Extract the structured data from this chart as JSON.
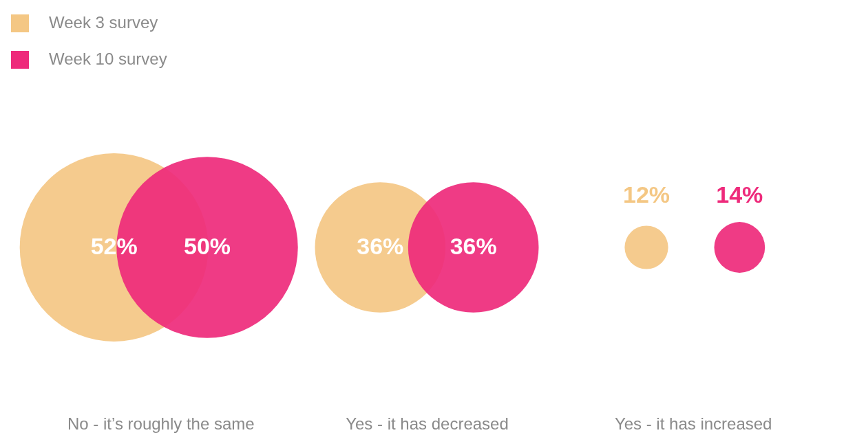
{
  "chart_data": {
    "type": "other",
    "categories": [
      "No - it’s roughly the same",
      "Yes - it has decreased",
      "Yes - it has increased"
    ],
    "series": [
      {
        "name": "Week 3 survey",
        "color": "#f4c784",
        "values": [
          52,
          36,
          12
        ],
        "value_labels": [
          "52%",
          "36%",
          "12%"
        ]
      },
      {
        "name": "Week 10 survey",
        "color": "#ee2a7b",
        "values": [
          50,
          36,
          14
        ],
        "value_labels": [
          "50%",
          "36%",
          "14%"
        ]
      }
    ],
    "legend": "top left"
  }
}
